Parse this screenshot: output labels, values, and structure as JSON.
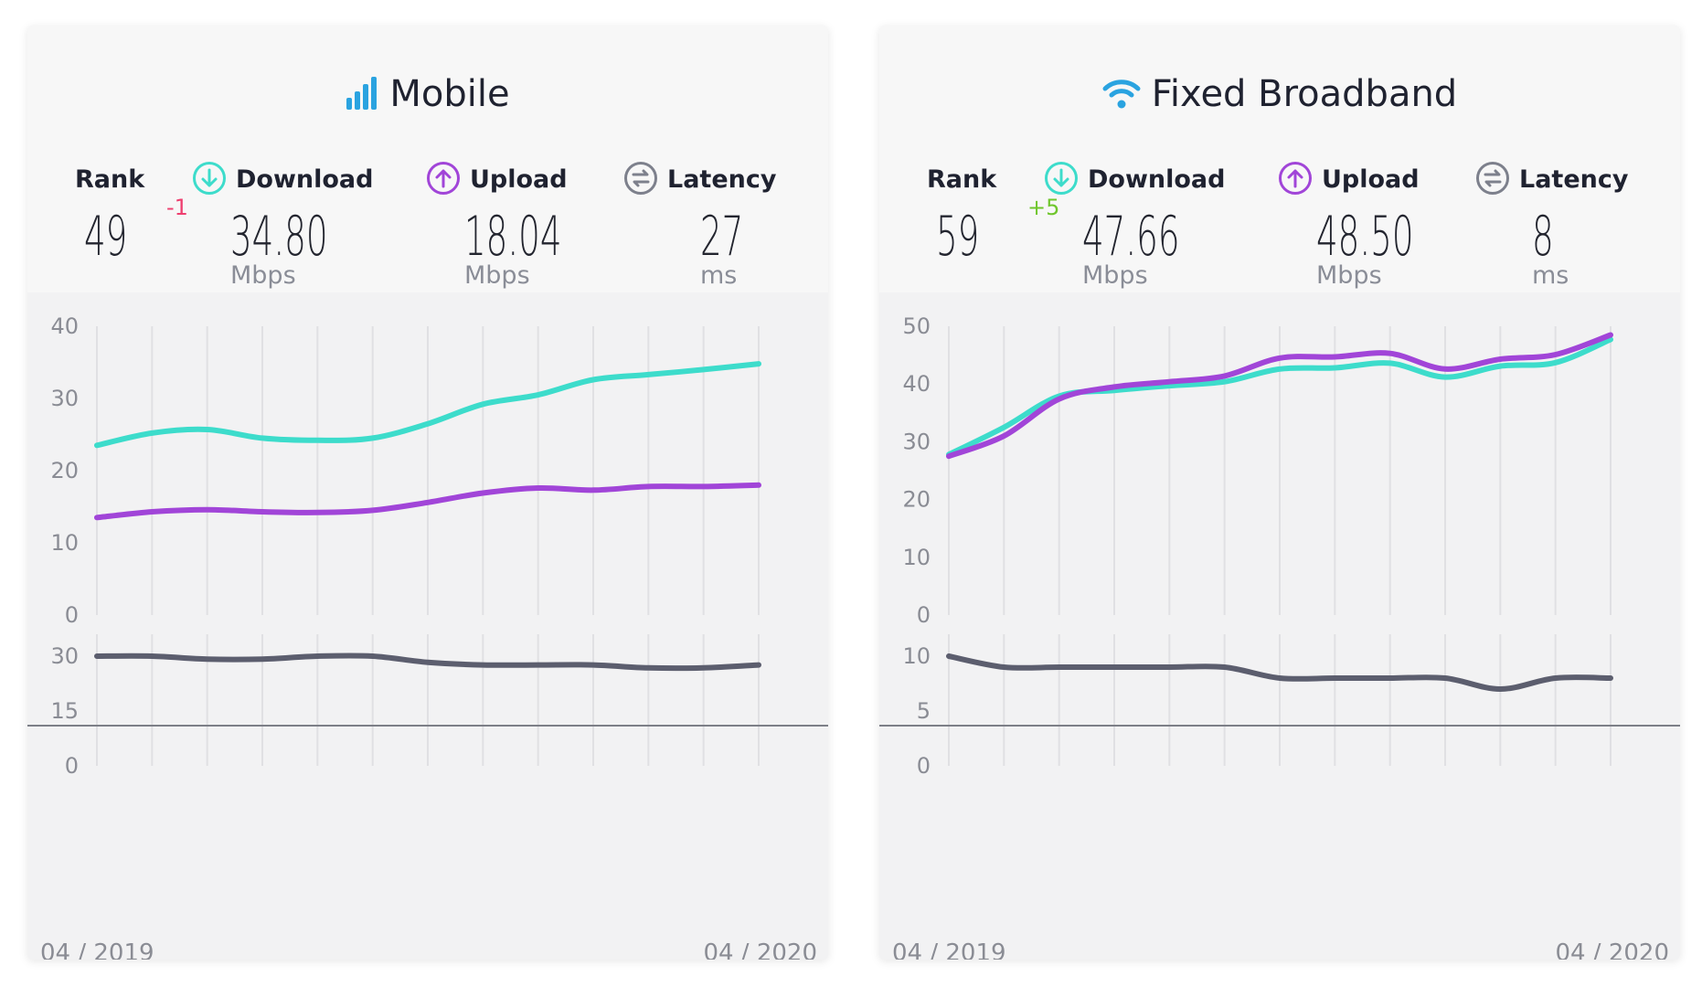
{
  "colors": {
    "download": "#3ddccb",
    "upload": "#a145d8",
    "latency": "#5c5e6e",
    "rank_down": "#ee3f6f",
    "rank_up": "#6fc62c",
    "title_icon": "#2aa3e0"
  },
  "chart_data": [
    {
      "type": "line",
      "card": "Mobile",
      "title": "Mobile",
      "icon": "signal-bars-icon",
      "metrics": {
        "rank": {
          "label": "Rank",
          "value": "49",
          "change": "-1"
        },
        "download": {
          "label": "Download",
          "value": "34.80",
          "unit": "Mbps",
          "icon": "download-arrow-icon"
        },
        "upload": {
          "label": "Upload",
          "value": "18.04",
          "unit": "Mbps",
          "icon": "upload-arrow-icon"
        },
        "latency": {
          "label": "Latency",
          "value": "27",
          "unit": "ms",
          "icon": "latency-icon"
        }
      },
      "x_start_label": "04 / 2019",
      "x_end_label": "04 / 2020",
      "speed_chart": {
        "ylim": [
          0,
          40
        ],
        "yticks": [
          "40",
          "30",
          "20",
          "10",
          "0"
        ],
        "points": 13,
        "series": [
          {
            "values": [
              23.5,
              25.2,
              25.7,
              24.5,
              24.2,
              24.5,
              26.5,
              29.2,
              30.5,
              32.6,
              33.3,
              34.0,
              34.8
            ]
          },
          {
            "values": [
              13.5,
              14.3,
              14.6,
              14.3,
              14.2,
              14.5,
              15.6,
              16.9,
              17.6,
              17.3,
              17.8,
              17.8,
              18.0
            ]
          }
        ]
      },
      "latency_chart": {
        "ylim": [
          0,
          30
        ],
        "yticks": [
          "30",
          "15",
          "0"
        ],
        "points": 13,
        "series": [
          {
            "values": [
              30,
              30,
              29.2,
              29.2,
              30,
              30,
              28.3,
              27.6,
              27.6,
              27.6,
              26.8,
              26.8,
              27.6
            ]
          }
        ]
      }
    },
    {
      "type": "line",
      "card": "Fixed Broadband",
      "title": "Fixed Broadband",
      "icon": "wifi-icon",
      "metrics": {
        "rank": {
          "label": "Rank",
          "value": "59",
          "change": "+5"
        },
        "download": {
          "label": "Download",
          "value": "47.66",
          "unit": "Mbps",
          "icon": "download-arrow-icon"
        },
        "upload": {
          "label": "Upload",
          "value": "48.50",
          "unit": "Mbps",
          "icon": "upload-arrow-icon"
        },
        "latency": {
          "label": "Latency",
          "value": "8",
          "unit": "ms",
          "icon": "latency-icon"
        }
      },
      "x_start_label": "04 / 2019",
      "x_end_label": "04 / 2020",
      "speed_chart": {
        "ylim": [
          0,
          50
        ],
        "yticks": [
          "50",
          "40",
          "30",
          "20",
          "10",
          "0"
        ],
        "points": 13,
        "series": [
          {
            "values": [
              27.8,
              32.5,
              37.9,
              38.9,
              39.7,
              40.4,
              42.6,
              42.8,
              43.6,
              41.2,
              43.1,
              43.7,
              47.7
            ]
          },
          {
            "values": [
              27.5,
              31.0,
              37.4,
              39.5,
              40.4,
              41.4,
              44.5,
              44.7,
              45.3,
              42.6,
              44.3,
              45.1,
              48.5
            ]
          }
        ]
      },
      "latency_chart": {
        "ylim": [
          0,
          10
        ],
        "yticks": [
          "10",
          "5",
          "0"
        ],
        "points": 13,
        "series": [
          {
            "values": [
              10,
              9,
              9,
              9,
              9,
              9,
              8,
              8,
              8,
              8,
              7,
              8,
              8
            ]
          }
        ]
      }
    }
  ]
}
